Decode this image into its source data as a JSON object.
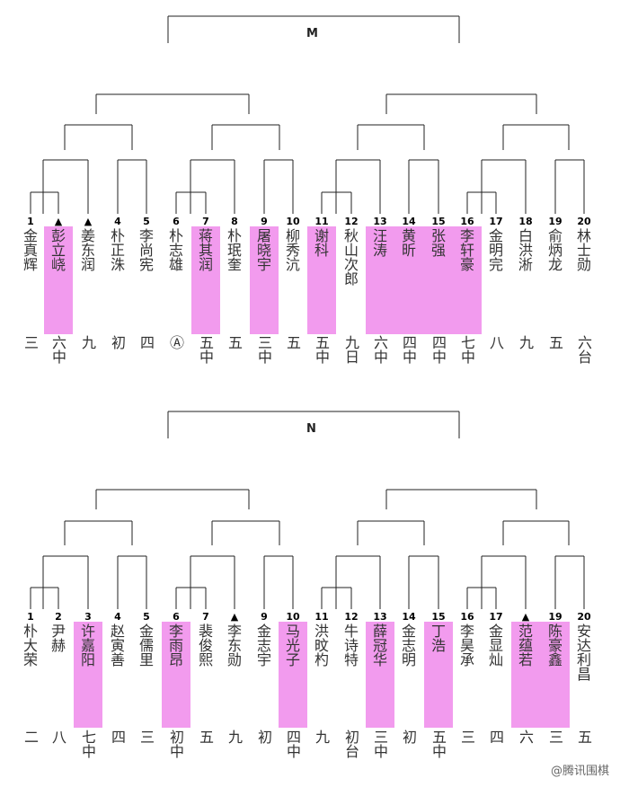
{
  "brackets": [
    {
      "label": "M",
      "players": [
        {
          "num": "1",
          "name": "金真辉",
          "grade": "三",
          "hl": false
        },
        {
          "num": "▲",
          "name": "彭立峣",
          "grade": "六中",
          "hl": true
        },
        {
          "num": "▲",
          "name": "姜东润",
          "grade": "九",
          "hl": false
        },
        {
          "num": "4",
          "name": "朴正洙",
          "grade": "初",
          "hl": false
        },
        {
          "num": "5",
          "name": "李尚宪",
          "grade": "四",
          "hl": false
        },
        {
          "num": "6",
          "name": "朴志雄",
          "grade": "Ⓐ",
          "hl": false
        },
        {
          "num": "7",
          "name": "蒋其润",
          "grade": "五中",
          "hl": true
        },
        {
          "num": "8",
          "name": "朴珉奎",
          "grade": "五",
          "hl": false
        },
        {
          "num": "9",
          "name": "屠晓宇",
          "grade": "三中",
          "hl": true
        },
        {
          "num": "10",
          "name": "柳秀沆",
          "grade": "五",
          "hl": false
        },
        {
          "num": "11",
          "name": "谢科",
          "grade": "五中",
          "hl": true
        },
        {
          "num": "12",
          "name": "秋山次郎",
          "grade": "九日",
          "hl": false
        },
        {
          "num": "13",
          "name": "汪涛",
          "grade": "六中",
          "hl": true
        },
        {
          "num": "14",
          "name": "黄昕",
          "grade": "四中",
          "hl": true
        },
        {
          "num": "15",
          "name": "张强",
          "grade": "四中",
          "hl": true
        },
        {
          "num": "16",
          "name": "李轩豪",
          "grade": "七中",
          "hl": true
        },
        {
          "num": "17",
          "name": "金明完",
          "grade": "八",
          "hl": false
        },
        {
          "num": "18",
          "name": "白洪淅",
          "grade": "九",
          "hl": false
        },
        {
          "num": "19",
          "name": "俞炳龙",
          "grade": "五",
          "hl": false
        },
        {
          "num": "20",
          "name": "林士勋",
          "grade": "六台",
          "hl": false
        }
      ]
    },
    {
      "label": "N",
      "players": [
        {
          "num": "1",
          "name": "朴大荣",
          "grade": "二",
          "hl": false
        },
        {
          "num": "2",
          "name": "尹赫",
          "grade": "八",
          "hl": false
        },
        {
          "num": "3",
          "name": "许嘉阳",
          "grade": "七中",
          "hl": true
        },
        {
          "num": "4",
          "name": "赵寅善",
          "grade": "四",
          "hl": false
        },
        {
          "num": "5",
          "name": "金儒里",
          "grade": "三",
          "hl": false
        },
        {
          "num": "6",
          "name": "李雨昂",
          "grade": "初中",
          "hl": true
        },
        {
          "num": "7",
          "name": "裴俊熙",
          "grade": "五",
          "hl": false
        },
        {
          "num": "▲",
          "name": "李东勋",
          "grade": "九",
          "hl": false
        },
        {
          "num": "9",
          "name": "金志宇",
          "grade": "初",
          "hl": false
        },
        {
          "num": "10",
          "name": "马光子",
          "grade": "四中",
          "hl": true
        },
        {
          "num": "11",
          "name": "洪旼杓",
          "grade": "九",
          "hl": false
        },
        {
          "num": "12",
          "name": "牛诗特",
          "grade": "初台",
          "hl": false
        },
        {
          "num": "13",
          "name": "薛冠华",
          "grade": "三中",
          "hl": true
        },
        {
          "num": "14",
          "name": "金志明",
          "grade": "初",
          "hl": false
        },
        {
          "num": "15",
          "name": "丁浩",
          "grade": "五中",
          "hl": true
        },
        {
          "num": "16",
          "name": "李昊承",
          "grade": "三",
          "hl": false
        },
        {
          "num": "17",
          "name": "金显灿",
          "grade": "四",
          "hl": false
        },
        {
          "num": "▲",
          "name": "范蕴若",
          "grade": "六",
          "hl": true
        },
        {
          "num": "19",
          "name": "陈豪鑫",
          "grade": "三",
          "hl": true
        },
        {
          "num": "20",
          "name": "安达利昌",
          "grade": "五",
          "hl": false
        }
      ]
    }
  ],
  "watermark": "@腾讯围棋"
}
